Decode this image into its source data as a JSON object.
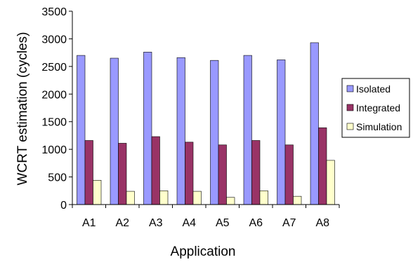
{
  "chart_data": {
    "type": "bar",
    "title": "",
    "xlabel": "Application",
    "ylabel": "WCRT estimation (cycles)",
    "categories": [
      "A1",
      "A2",
      "A3",
      "A4",
      "A5",
      "A6",
      "A7",
      "A8"
    ],
    "ylim": [
      0,
      3500
    ],
    "yticks": [
      "0",
      "500",
      "1000",
      "1500",
      "2000",
      "2500",
      "3000",
      "3500"
    ],
    "grid": false,
    "legend_position": "right",
    "series": [
      {
        "name": "Isolated",
        "color": "#9999ff",
        "values": [
          2700,
          2650,
          2760,
          2660,
          2610,
          2700,
          2620,
          2930
        ]
      },
      {
        "name": "Integrated",
        "color": "#993366",
        "values": [
          1160,
          1110,
          1230,
          1130,
          1080,
          1160,
          1080,
          1390
        ]
      },
      {
        "name": "Simulation",
        "color": "#ffffcc",
        "values": [
          440,
          240,
          250,
          240,
          130,
          250,
          150,
          800
        ]
      }
    ]
  }
}
